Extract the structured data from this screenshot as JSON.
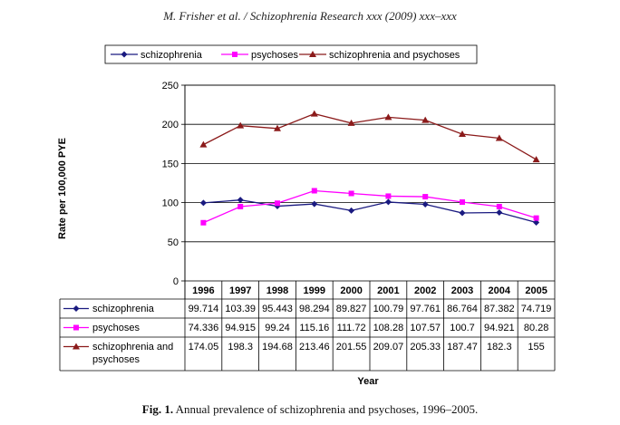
{
  "page": {
    "running_head": "M. Frisher et al. / Schizophrenia Research xxx (2009) xxx–xxx",
    "caption_label": "Fig. 1.",
    "caption_text": "Annual prevalence of schizophrenia and psychoses, 1996–2005."
  },
  "chart_data": {
    "type": "line",
    "title": "",
    "xlabel": "Year",
    "ylabel": "Rate per 100,000 PYE",
    "ylim": [
      0,
      250
    ],
    "yticks": [
      0,
      50,
      100,
      150,
      200,
      250
    ],
    "grid": true,
    "legend_position": "top",
    "categories": [
      "1996",
      "1997",
      "1998",
      "1999",
      "2000",
      "2001",
      "2002",
      "2003",
      "2004",
      "2005"
    ],
    "series": [
      {
        "name": "schizophrenia",
        "color": "#1a1a80",
        "marker": "diamond",
        "values": [
          99.714,
          103.39,
          95.443,
          98.294,
          89.827,
          100.79,
          97.761,
          86.764,
          87.382,
          74.719
        ],
        "labels": [
          "99.714",
          "103.39",
          "95.443",
          "98.294",
          "89.827",
          "100.79",
          "97.761",
          "86.764",
          "87.382",
          "74.719"
        ]
      },
      {
        "name": "psychoses",
        "color": "#ff00ff",
        "marker": "square",
        "values": [
          74.336,
          94.915,
          99.24,
          115.16,
          111.72,
          108.28,
          107.57,
          100.7,
          94.921,
          80.28
        ],
        "labels": [
          "74.336",
          "94.915",
          "99.24",
          "115.16",
          "111.72",
          "108.28",
          "107.57",
          "100.7",
          "94.921",
          "80.28"
        ]
      },
      {
        "name": "schizophrenia and psychoses",
        "name_lines": [
          "schizophrenia and",
          "psychoses"
        ],
        "color": "#8b1a1a",
        "marker": "triangle",
        "values": [
          174.05,
          198.3,
          194.68,
          213.46,
          201.55,
          209.07,
          205.33,
          187.47,
          182.3,
          155
        ],
        "labels": [
          "174.05",
          "198.3",
          "194.68",
          "213.46",
          "201.55",
          "209.07",
          "205.33",
          "187.47",
          "182.3",
          "155"
        ]
      }
    ]
  }
}
